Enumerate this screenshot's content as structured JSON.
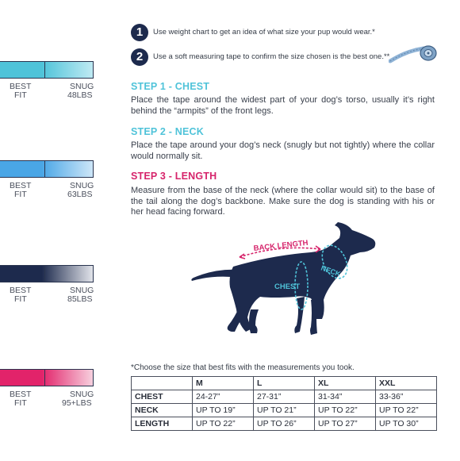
{
  "left_scale": {
    "items": [
      {
        "best": "BEST",
        "fit": "FIT",
        "snug": "SNUG",
        "weight": "48LBS",
        "color": "#4fc3d9"
      },
      {
        "best": "BEST",
        "fit": "FIT",
        "snug": "SNUG",
        "weight": "63LBS",
        "color": "#4aa6e6"
      },
      {
        "best": "BEST",
        "fit": "FIT",
        "snug": "SNUG",
        "weight": "85LBS",
        "color": "#1d2a4d"
      },
      {
        "best": "BEST",
        "fit": "FIT",
        "snug": "SNUG",
        "weight": "95+LBS",
        "color": "#e2236a"
      }
    ]
  },
  "tips": [
    {
      "num": "1",
      "text": "Use weight chart to get an idea of what size your pup would wear.*"
    },
    {
      "num": "2",
      "text": "Use a soft measuring tape to confirm the size chosen is the best one.**"
    }
  ],
  "steps": [
    {
      "title": "STEP 1 - CHEST",
      "color": "#4fc3d9",
      "text": "Place the tape around the widest part of your dog’s torso, usually it’s right behind the “armpits” of the front legs."
    },
    {
      "title": "STEP 2 - NECK",
      "color": "#4fc3d9",
      "text": "Place the tape around your dog’s neck (snugly but not tightly) where the collar would normally sit."
    },
    {
      "title": "STEP 3 - LENGTH",
      "color": "#d6246b",
      "text": "Measure from the base of the neck (where the collar would sit) to the base of the tail along the dog’s backbone. Make sure the dog is standing with his or her head facing forward."
    }
  ],
  "diagram": {
    "back_length": "BACK LENGTH",
    "neck": "NECK",
    "chest": "CHEST",
    "dog_color": "#1d2a4d",
    "accent_pink": "#d6246b",
    "accent_cyan": "#4fc3d9"
  },
  "table": {
    "caption": "*Choose the size that best fits with the measurements you took.",
    "headers": [
      "",
      "M",
      "L",
      "XL",
      "XXL"
    ],
    "rows": [
      {
        "label": "CHEST",
        "values": [
          "24-27”",
          "27-31”",
          "31-34”",
          "33-36”"
        ]
      },
      {
        "label": "NECK",
        "values": [
          "UP TO 19”",
          "UP TO 21”",
          "UP TO 22”",
          "UP TO 22”"
        ]
      },
      {
        "label": "LENGTH",
        "values": [
          "UP TO 22”",
          "UP TO 26”",
          "UP TO 27”",
          "UP TO 30”"
        ]
      }
    ]
  }
}
